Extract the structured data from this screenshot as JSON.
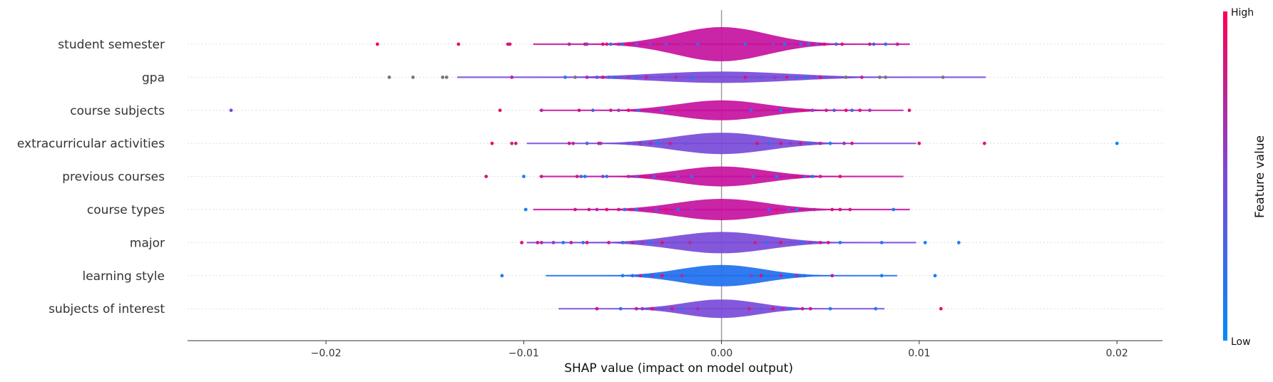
{
  "chart_data": {
    "type": "violin",
    "xlabel": "SHAP value (impact on model output)",
    "xlim": [
      -0.027,
      0.0223
    ],
    "xticks": [
      -0.02,
      -0.01,
      0.0,
      0.01,
      0.02
    ],
    "xtick_labels": [
      "−0.02",
      "−0.01",
      "0.00",
      "0.01",
      "0.02"
    ],
    "colorbar": {
      "label": "Feature value",
      "high": "High",
      "low": "Low"
    },
    "colors": {
      "low": "#008bfb",
      "high": "#ff0052",
      "missing": "#777777"
    },
    "features": [
      {
        "name": "student semester",
        "spread": 0.0023,
        "peak": 24,
        "body_color": "#c5119f",
        "points": [
          [
            -0.0174,
            0.95
          ],
          [
            -0.0133,
            0.9
          ],
          [
            -0.0108,
            0.85
          ],
          [
            -0.0107,
            0.8
          ],
          [
            -0.0077,
            0.7
          ],
          [
            -0.0069,
            0.85
          ],
          [
            -0.0068,
            0.6
          ],
          [
            -0.006,
            0.9
          ],
          [
            -0.0058,
            0.8
          ],
          [
            -0.0056,
            0.2
          ],
          [
            -0.0052,
            0.7
          ],
          [
            -0.005,
            0.3
          ],
          [
            -0.0047,
            0.9
          ],
          [
            -0.0043,
            0.4
          ],
          [
            -0.0038,
            0.8
          ],
          [
            -0.0036,
            0.6
          ],
          [
            -0.0032,
            0.85
          ],
          [
            -0.0028,
            0.5
          ],
          [
            -0.002,
            0.7
          ],
          [
            -0.0012,
            0.3
          ],
          [
            0.0012,
            0.2
          ],
          [
            0.002,
            0.8
          ],
          [
            0.0026,
            0.6
          ],
          [
            0.0032,
            0.1
          ],
          [
            0.0036,
            0.7
          ],
          [
            0.004,
            0.3
          ],
          [
            0.0044,
            0.2
          ],
          [
            0.0048,
            0.5
          ],
          [
            0.0052,
            0.9
          ],
          [
            0.0058,
            0.3
          ],
          [
            0.0061,
            0.85
          ],
          [
            0.0075,
            0.8
          ],
          [
            0.0077,
            0.3
          ],
          [
            0.0083,
            0.1
          ],
          [
            0.0089,
            0.8
          ]
        ]
      },
      {
        "name": "gpa",
        "spread": 0.0035,
        "peak": 8,
        "body_color": "#7a4ad8",
        "points": [
          [
            -0.0168,
            -1
          ],
          [
            -0.0156,
            -1
          ],
          [
            -0.0141,
            -1
          ],
          [
            -0.0139,
            -1
          ],
          [
            -0.0106,
            0.8
          ],
          [
            -0.0079,
            0.15
          ],
          [
            -0.0074,
            -1
          ],
          [
            -0.0068,
            0.7
          ],
          [
            -0.0063,
            0.4
          ],
          [
            -0.006,
            0.9
          ],
          [
            -0.0057,
            0.3
          ],
          [
            -0.0054,
            0.1
          ],
          [
            -0.0047,
            0.6
          ],
          [
            -0.0043,
            0.2
          ],
          [
            -0.0038,
            0.8
          ],
          [
            -0.003,
            0.4
          ],
          [
            -0.0023,
            0.7
          ],
          [
            -0.0015,
            0.1
          ],
          [
            0.0012,
            0.9
          ],
          [
            0.002,
            0.3
          ],
          [
            0.0027,
            0.6
          ],
          [
            0.0033,
            0.8
          ],
          [
            0.0038,
            0.2
          ],
          [
            0.0043,
            0.1
          ],
          [
            0.0047,
            0.5
          ],
          [
            0.005,
            0.9
          ],
          [
            0.0063,
            -1
          ],
          [
            0.0071,
            0.8
          ],
          [
            0.008,
            -1
          ],
          [
            0.0083,
            -1
          ],
          [
            0.0112,
            -1
          ]
        ]
      },
      {
        "name": "course subjects",
        "spread": 0.0022,
        "peak": 14,
        "body_color": "#c5119f",
        "points": [
          [
            -0.0248,
            0.5
          ],
          [
            -0.0112,
            0.9
          ],
          [
            -0.0091,
            0.7
          ],
          [
            -0.0072,
            0.85
          ],
          [
            -0.0065,
            0.3
          ],
          [
            -0.0056,
            0.8
          ],
          [
            -0.0052,
            0.6
          ],
          [
            -0.0047,
            0.9
          ],
          [
            -0.0042,
            0.2
          ],
          [
            -0.0036,
            0.7
          ],
          [
            -0.003,
            0.3
          ],
          [
            -0.0022,
            0.85
          ],
          [
            0.0015,
            0.3
          ],
          [
            0.0022,
            0.8
          ],
          [
            0.003,
            0.1
          ],
          [
            0.0036,
            0.7
          ],
          [
            0.0041,
            0.9
          ],
          [
            0.0046,
            0.6
          ],
          [
            0.0053,
            0.8
          ],
          [
            0.0057,
            0.4
          ],
          [
            0.0063,
            0.9
          ],
          [
            0.0066,
            0.2
          ],
          [
            0.007,
            0.8
          ],
          [
            0.0075,
            0.6
          ],
          [
            0.0095,
            0.85
          ]
        ]
      },
      {
        "name": "extracurricular activities",
        "spread": 0.0024,
        "peak": 15,
        "body_color": "#7a4ad8",
        "points": [
          [
            -0.0116,
            0.9
          ],
          [
            -0.0106,
            0.8
          ],
          [
            -0.0104,
            0.85
          ],
          [
            -0.0077,
            0.85
          ],
          [
            -0.0075,
            0.7
          ],
          [
            -0.0068,
            0.2
          ],
          [
            -0.0062,
            0.9
          ],
          [
            -0.0061,
            0.6
          ],
          [
            -0.0047,
            0.5
          ],
          [
            -0.0041,
            0.9
          ],
          [
            -0.004,
            0.3
          ],
          [
            -0.0036,
            0.7
          ],
          [
            -0.0032,
            0.1
          ],
          [
            -0.0026,
            0.8
          ],
          [
            -0.0018,
            0.4
          ],
          [
            0.0018,
            0.9
          ],
          [
            0.0024,
            0.2
          ],
          [
            0.003,
            0.85
          ],
          [
            0.0035,
            0.6
          ],
          [
            0.004,
            0.9
          ],
          [
            0.0045,
            0.3
          ],
          [
            0.005,
            0.8
          ],
          [
            0.0055,
            0.1
          ],
          [
            0.0062,
            0.7
          ],
          [
            0.0066,
            0.9
          ],
          [
            0.01,
            0.9
          ],
          [
            0.0133,
            0.85
          ],
          [
            0.02,
            0.05
          ]
        ]
      },
      {
        "name": "previous courses",
        "spread": 0.0022,
        "peak": 14,
        "body_color": "#c5119f",
        "points": [
          [
            -0.0119,
            0.85
          ],
          [
            -0.01,
            0.1
          ],
          [
            -0.0091,
            0.8
          ],
          [
            -0.0073,
            0.85
          ],
          [
            -0.0071,
            0.3
          ],
          [
            -0.0069,
            0.1
          ],
          [
            -0.006,
            0.6
          ],
          [
            -0.0058,
            0.2
          ],
          [
            -0.0047,
            0.7
          ],
          [
            -0.0043,
            0.4
          ],
          [
            -0.0039,
            0.9
          ],
          [
            -0.0034,
            0.3
          ],
          [
            -0.0028,
            0.8
          ],
          [
            -0.0022,
            0.5
          ],
          [
            -0.0015,
            0.2
          ],
          [
            0.0016,
            0.3
          ],
          [
            0.0022,
            0.8
          ],
          [
            0.0028,
            0.1
          ],
          [
            0.0033,
            0.7
          ],
          [
            0.0038,
            0.9
          ],
          [
            0.0042,
            0.4
          ],
          [
            0.0046,
            0.1
          ],
          [
            0.005,
            0.8
          ],
          [
            0.006,
            0.9
          ]
        ]
      },
      {
        "name": "course types",
        "spread": 0.0023,
        "peak": 15,
        "body_color": "#c5119f",
        "points": [
          [
            -0.0099,
            0.1
          ],
          [
            -0.0074,
            0.85
          ],
          [
            -0.0067,
            0.8
          ],
          [
            -0.0063,
            0.7
          ],
          [
            -0.0058,
            0.9
          ],
          [
            -0.0052,
            0.85
          ],
          [
            -0.0049,
            0.3
          ],
          [
            -0.0046,
            0.8
          ],
          [
            -0.0043,
            0.1
          ],
          [
            -0.0038,
            0.7
          ],
          [
            -0.0033,
            0.4
          ],
          [
            -0.0028,
            0.9
          ],
          [
            -0.0022,
            0.2
          ],
          [
            -0.0015,
            0.6
          ],
          [
            0.0018,
            0.8
          ],
          [
            0.0024,
            0.3
          ],
          [
            0.0028,
            0.9
          ],
          [
            0.0034,
            0.5
          ],
          [
            0.0038,
            0.1
          ],
          [
            0.0043,
            0.8
          ],
          [
            0.0047,
            0.7
          ],
          [
            0.0056,
            0.9
          ],
          [
            0.006,
            0.85
          ],
          [
            0.0065,
            0.8
          ],
          [
            0.0087,
            0.05
          ]
        ]
      },
      {
        "name": "major",
        "spread": 0.0024,
        "peak": 15,
        "body_color": "#7a4ad8",
        "points": [
          [
            -0.0101,
            0.9
          ],
          [
            -0.0093,
            0.85
          ],
          [
            -0.0091,
            0.7
          ],
          [
            -0.0085,
            0.6
          ],
          [
            -0.008,
            0.1
          ],
          [
            -0.0076,
            0.8
          ],
          [
            -0.007,
            0.2
          ],
          [
            -0.0068,
            0.9
          ],
          [
            -0.0057,
            0.85
          ],
          [
            -0.005,
            0.3
          ],
          [
            -0.0045,
            0.8
          ],
          [
            -0.004,
            0.6
          ],
          [
            -0.0036,
            0.1
          ],
          [
            -0.003,
            0.9
          ],
          [
            -0.0024,
            0.4
          ],
          [
            -0.0016,
            0.7
          ],
          [
            0.0017,
            0.8
          ],
          [
            0.0023,
            0.2
          ],
          [
            0.003,
            0.9
          ],
          [
            0.0035,
            0.4
          ],
          [
            0.004,
            0.1
          ],
          [
            0.0045,
            0.6
          ],
          [
            0.005,
            0.85
          ],
          [
            0.0054,
            0.9
          ],
          [
            0.006,
            0.1
          ],
          [
            0.0081,
            0.2
          ],
          [
            0.0103,
            0.05
          ],
          [
            0.012,
            0.1
          ]
        ]
      },
      {
        "name": "learning style",
        "spread": 0.0021,
        "peak": 15,
        "body_color": "#1e70ee",
        "points": [
          [
            -0.0111,
            0.1
          ],
          [
            -0.005,
            0.1
          ],
          [
            -0.0045,
            0.3
          ],
          [
            -0.0041,
            0.8
          ],
          [
            -0.0035,
            0.6
          ],
          [
            -0.003,
            0.9
          ],
          [
            -0.0025,
            0.3
          ],
          [
            -0.002,
            0.7
          ],
          [
            -0.0014,
            0.2
          ],
          [
            0.0015,
            0.6
          ],
          [
            0.002,
            0.9
          ],
          [
            0.0025,
            0.3
          ],
          [
            0.003,
            0.8
          ],
          [
            0.0034,
            0.1
          ],
          [
            0.0038,
            0.7
          ],
          [
            0.0042,
            0.2
          ],
          [
            0.0056,
            0.85
          ],
          [
            0.0081,
            0.1
          ],
          [
            0.0108,
            0.05
          ]
        ]
      },
      {
        "name": "subjects of interest",
        "spread": 0.0019,
        "peak": 13,
        "body_color": "#7a4ad8",
        "points": [
          [
            -0.0063,
            0.85
          ],
          [
            -0.0051,
            0.2
          ],
          [
            -0.0043,
            0.8
          ],
          [
            -0.004,
            0.6
          ],
          [
            -0.0035,
            0.9
          ],
          [
            -0.003,
            0.4
          ],
          [
            -0.0025,
            0.8
          ],
          [
            -0.002,
            0.2
          ],
          [
            -0.0012,
            0.7
          ],
          [
            0.0014,
            0.8
          ],
          [
            0.002,
            0.3
          ],
          [
            0.0026,
            0.9
          ],
          [
            0.0031,
            0.6
          ],
          [
            0.0035,
            0.1
          ],
          [
            0.0041,
            0.8
          ],
          [
            0.0045,
            0.85
          ],
          [
            0.0055,
            0.1
          ],
          [
            0.0078,
            0.1
          ],
          [
            0.0111,
            0.9
          ]
        ]
      }
    ]
  }
}
